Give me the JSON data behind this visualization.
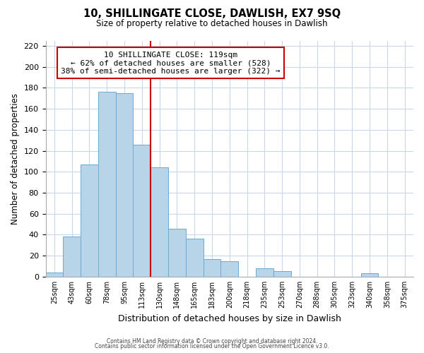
{
  "title": "10, SHILLINGATE CLOSE, DAWLISH, EX7 9SQ",
  "subtitle": "Size of property relative to detached houses in Dawlish",
  "xlabel": "Distribution of detached houses by size in Dawlish",
  "ylabel": "Number of detached properties",
  "bar_labels": [
    "25sqm",
    "43sqm",
    "60sqm",
    "78sqm",
    "95sqm",
    "113sqm",
    "130sqm",
    "148sqm",
    "165sqm",
    "183sqm",
    "200sqm",
    "218sqm",
    "235sqm",
    "253sqm",
    "270sqm",
    "288sqm",
    "305sqm",
    "323sqm",
    "340sqm",
    "358sqm",
    "375sqm"
  ],
  "bar_values": [
    4,
    38,
    107,
    176,
    175,
    126,
    104,
    46,
    36,
    17,
    15,
    0,
    8,
    5,
    0,
    0,
    0,
    0,
    3,
    0,
    0
  ],
  "bar_color": "#b8d4e8",
  "bar_edge_color": "#6aaad4",
  "vline_x": 6.0,
  "vline_color": "#cc0000",
  "annotation_title": "10 SHILLINGATE CLOSE: 119sqm",
  "annotation_line1": "← 62% of detached houses are smaller (528)",
  "annotation_line2": "38% of semi-detached houses are larger (322) →",
  "annotation_box_color": "#ffffff",
  "annotation_box_edge": "#cc0000",
  "ylim": [
    0,
    225
  ],
  "yticks": [
    0,
    20,
    40,
    60,
    80,
    100,
    120,
    140,
    160,
    180,
    200,
    220
  ],
  "footer1": "Contains HM Land Registry data © Crown copyright and database right 2024.",
  "footer2": "Contains public sector information licensed under the Open Government Licence v3.0.",
  "bg_color": "#ffffff",
  "grid_color": "#c8d8e8"
}
